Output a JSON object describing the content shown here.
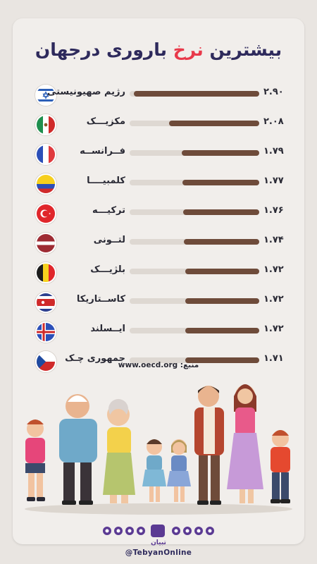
{
  "title": {
    "part1": "بیشترین ",
    "highlight": "نرخ",
    "part2": " باروری درجهان"
  },
  "source": {
    "label": "منبع:",
    "url": "www.oecd.org"
  },
  "brand": {
    "name": "تبیان",
    "handle": "@TebyanOnline"
  },
  "chart_data": {
    "type": "bar",
    "title": "بیشترین نرخ باروری درجهان",
    "categories": [
      "رژیم صهیونیستی",
      "مکزیـــک",
      "فــرانســه",
      "کلمبیــــا",
      "ترکیـــه",
      "لتــونی",
      "بلژیـــک",
      "کاســتاریکا",
      "ایــسلند",
      "جمهوری چـک"
    ],
    "values": [
      2.9,
      2.08,
      1.79,
      1.77,
      1.76,
      1.74,
      1.72,
      1.72,
      1.72,
      1.71
    ],
    "value_labels": [
      "۲.۹۰",
      "۲.۰۸",
      "۱.۷۹",
      "۱.۷۷",
      "۱.۷۶",
      "۱.۷۴",
      "۱.۷۲",
      "۱.۷۲",
      "۱.۷۲",
      "۱.۷۱"
    ],
    "flags": [
      "israel",
      "mexico",
      "france",
      "colombia",
      "turkey",
      "latvia",
      "belgium",
      "costa-rica",
      "iceland",
      "czech-republic"
    ],
    "colors": {
      "bar": "#6e4b3a",
      "track": "#ded8d2",
      "title": "#2e2a5c",
      "highlight": "#e8394a"
    }
  }
}
